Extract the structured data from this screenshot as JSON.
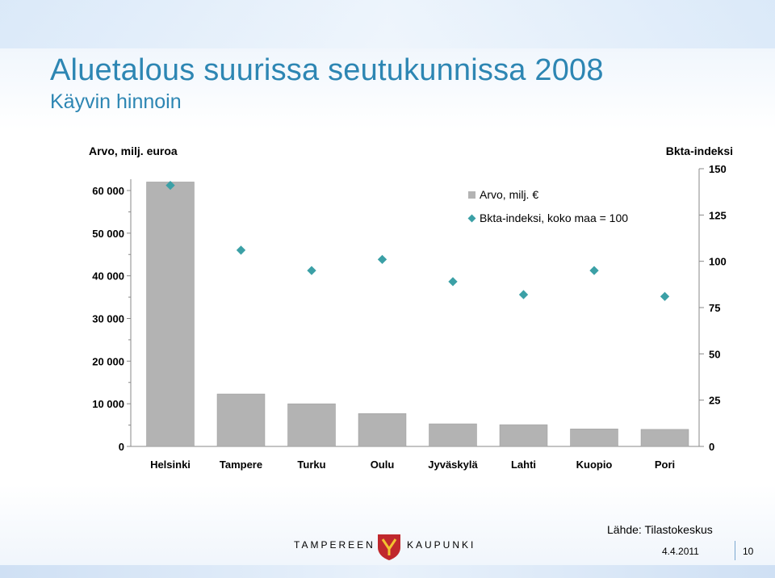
{
  "slide": {
    "title": "Aluetalous suurissa seutukunnissa 2008",
    "subtitle": "Käyvin hinnoin",
    "source": "Lähde: Tilastokeskus",
    "footer_left": "TAMPEREEN",
    "footer_right": "KAUPUNKI",
    "date": "4.4.2011",
    "page_number": "10"
  },
  "chart_data": {
    "type": "bar",
    "categories": [
      "Helsinki",
      "Tampere",
      "Turku",
      "Oulu",
      "Jyväskylä",
      "Lahti",
      "Kuopio",
      "Pori"
    ],
    "series": [
      {
        "name": "Arvo, milj. €",
        "type": "bar",
        "axis": "left",
        "color": "#b3b3b3",
        "values": [
          62000,
          12300,
          10000,
          7700,
          5300,
          5100,
          4100,
          4000
        ]
      },
      {
        "name": "Bkta-indeksi, koko maa = 100",
        "type": "scatter",
        "axis": "right",
        "color": "#3ba0a6",
        "values": [
          141,
          106,
          95,
          101,
          89,
          82,
          95,
          81
        ]
      }
    ],
    "y_left": {
      "label": "Arvo, milj. euroa",
      "range": [
        0,
        60000
      ],
      "ticks": [
        0,
        10000,
        20000,
        30000,
        40000,
        50000,
        60000
      ],
      "tick_labels": [
        "0",
        "10 000",
        "20 000",
        "30 000",
        "40 000",
        "50 000",
        "60 000"
      ]
    },
    "y_right": {
      "label": "Bkta-indeksi",
      "range": [
        0,
        150
      ],
      "ticks": [
        0,
        25,
        50,
        75,
        100,
        125,
        150
      ],
      "tick_labels": [
        "0",
        "25",
        "50",
        "75",
        "100",
        "125",
        "150"
      ]
    },
    "legend_position": "top-right",
    "grid": false
  }
}
